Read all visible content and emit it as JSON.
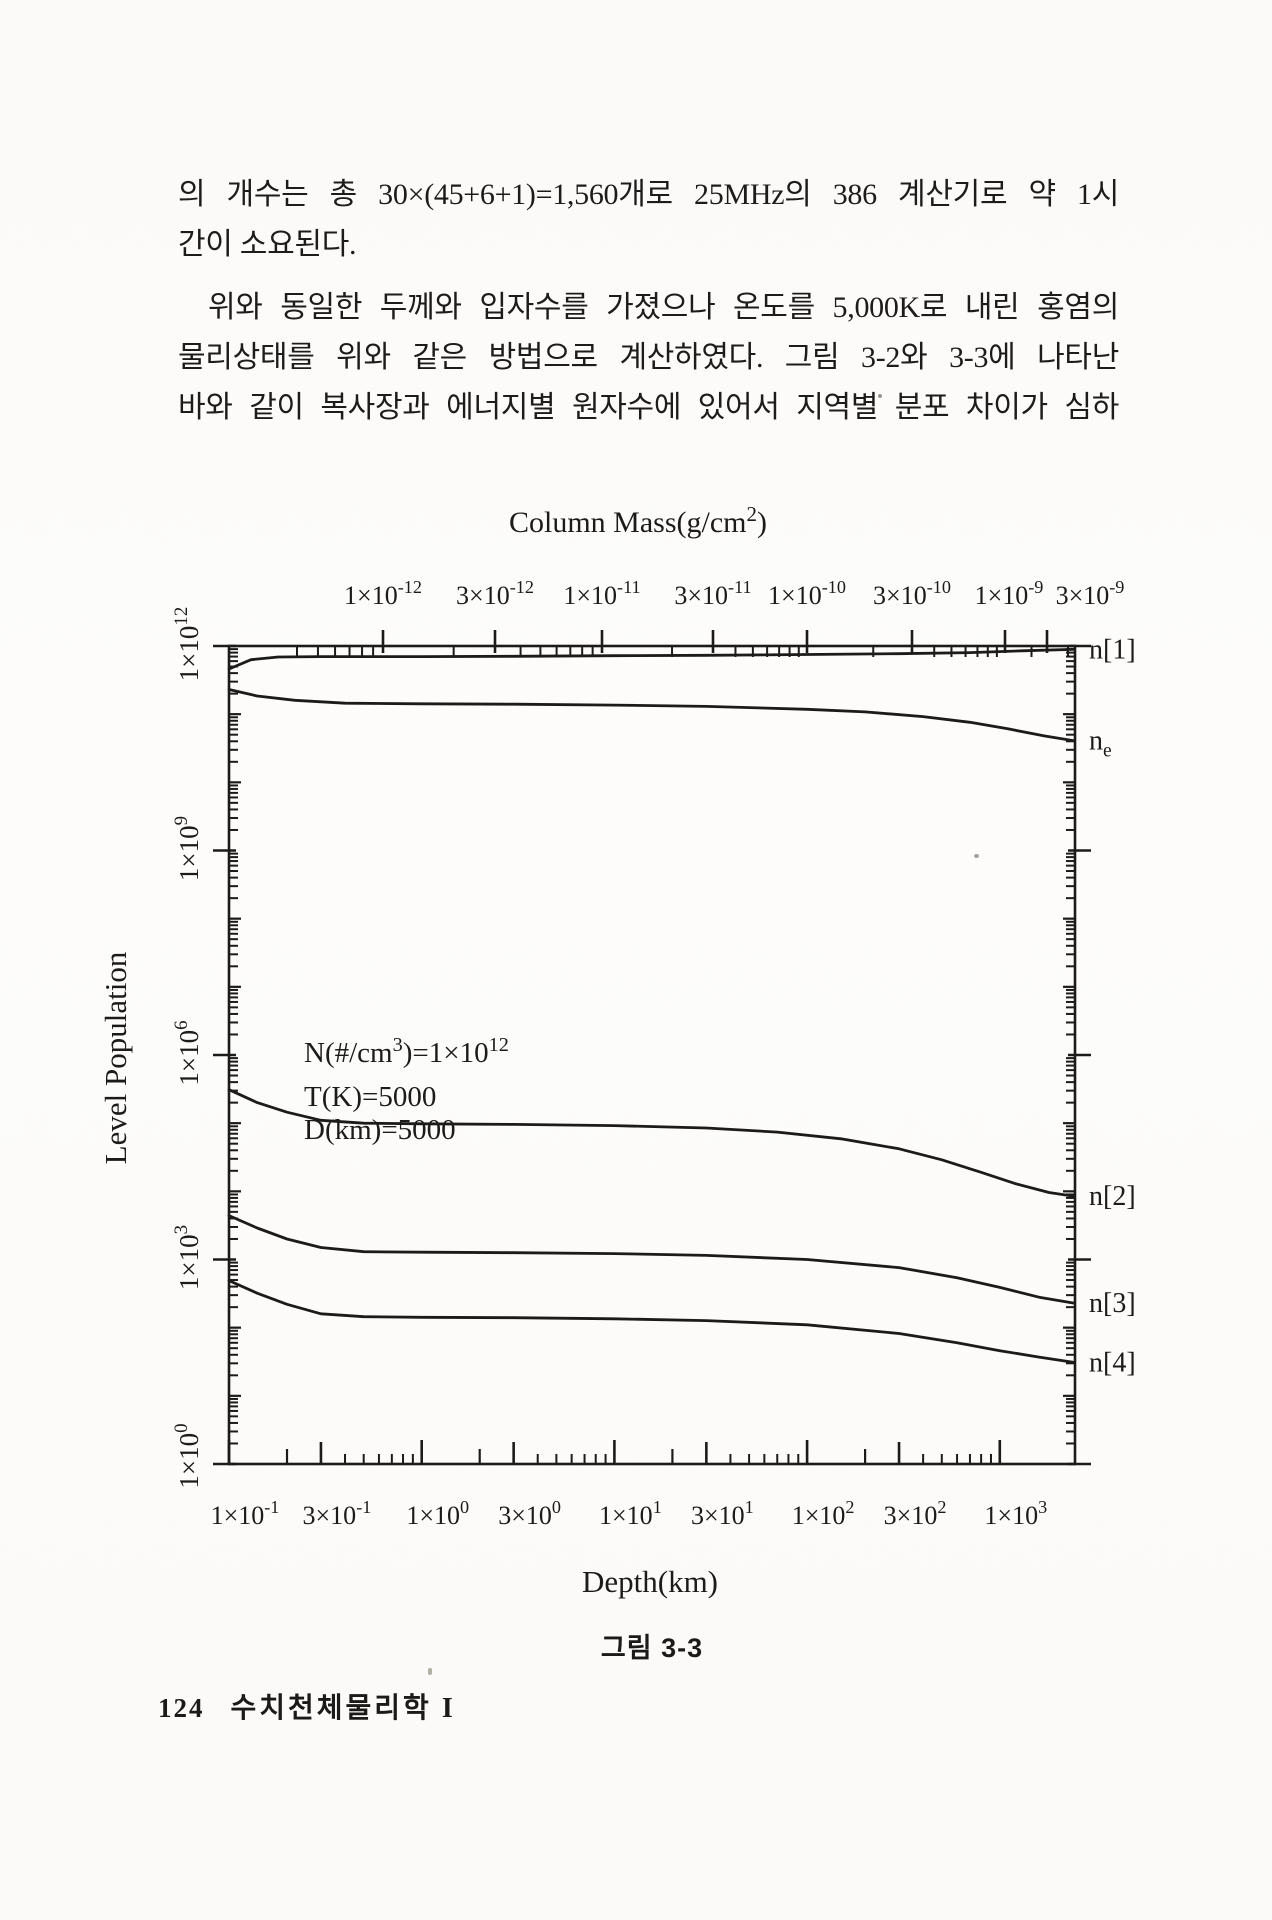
{
  "document": {
    "paragraph_lines": [
      "의 개수는 총 30×(45+6+1)=1,560개로 25MHz의 386 계산기로 약 1시",
      "간이 소요된다.",
      "위와 동일한 두께와 입자수를 가졌으나 온도를 5,000K로 내린 홍염의",
      "물리상태를 위와 같은 방법으로 계산하였다. 그림 3-2와 3-3에 나타난",
      "바와 같이 복사장과 에너지별 원자수에 있어서 지역별 분포 차이가 심하"
    ],
    "caption": "그림 3-3",
    "footer": {
      "page_number": "124",
      "book_title": "수치천체물리학 I"
    }
  },
  "chart_data": {
    "type": "line",
    "title": "Column Mass(g/cm²)",
    "xlabel": "Depth(km)",
    "ylabel": "Level Population",
    "grid": false,
    "x_axis": {
      "scale": "log",
      "unit": "km",
      "min": 0.1,
      "max": 2400,
      "tick_values": [
        0.1,
        0.3,
        1,
        3,
        10,
        30,
        100,
        300,
        1000
      ],
      "tick_labels": [
        "1×10⁻¹",
        "3×10⁻¹",
        "1×10⁰",
        "3×10⁰",
        "1×10¹",
        "3×10¹",
        "1×10²",
        "3×10²",
        "1×10³"
      ]
    },
    "y_axis": {
      "scale": "log",
      "unit": "cm⁻³",
      "min": 1,
      "max": 1000000000000.0,
      "tick_values": [
        1000000000000.0,
        1000000000.0,
        1000000.0,
        1000.0,
        1
      ],
      "tick_labels": [
        "1×10¹²",
        "1×10⁹",
        "1×10⁶",
        "1×10³",
        "1×10⁰"
      ]
    },
    "top_axis": {
      "title": "Column Mass(g/cm²)",
      "unit": "g/cm²",
      "tick_values": [
        1e-12,
        3e-12,
        1e-11,
        3e-11,
        1e-10,
        3e-10,
        1e-09,
        3e-09
      ],
      "tick_labels": [
        "1×10⁻¹²",
        "3×10⁻¹²",
        "1×10⁻¹¹",
        "3×10⁻¹¹",
        "1×10⁻¹⁰",
        "3×10⁻¹⁰",
        "1×10⁻⁹",
        "3×10⁻⁹"
      ]
    },
    "annotations": [
      "N(#/cm³)=1×10¹²",
      "T(K)=5000",
      "D(km)=5000"
    ],
    "series": [
      {
        "name": "n[1]",
        "points": [
          [
            0.1,
            460000000000.0
          ],
          [
            0.13,
            630000000000.0
          ],
          [
            0.18,
            690000000000.0
          ],
          [
            0.3,
            700000000000.0
          ],
          [
            1,
            700000000000.0
          ],
          [
            3,
            705000000000.0
          ],
          [
            10,
            720000000000.0
          ],
          [
            30,
            730000000000.0
          ],
          [
            100,
            750000000000.0
          ],
          [
            300,
            770000000000.0
          ],
          [
            700,
            800000000000.0
          ],
          [
            1300,
            850000000000.0
          ],
          [
            2400,
            890000000000.0
          ]
        ]
      },
      {
        "name": "nₑ",
        "points": [
          [
            0.1,
            230000000000.0
          ],
          [
            0.14,
            185000000000.0
          ],
          [
            0.22,
            160000000000.0
          ],
          [
            0.4,
            145000000000.0
          ],
          [
            1,
            142000000000.0
          ],
          [
            3,
            140000000000.0
          ],
          [
            10,
            136000000000.0
          ],
          [
            30,
            130000000000.0
          ],
          [
            100,
            118000000000.0
          ],
          [
            200,
            108000000000.0
          ],
          [
            400,
            92000000000.0
          ],
          [
            700,
            76000000000.0
          ],
          [
            1100,
            61000000000.0
          ],
          [
            1700,
            48000000000.0
          ],
          [
            2400,
            41000000000.0
          ]
        ]
      },
      {
        "name": "n[2]",
        "points": [
          [
            0.1,
            310000.0
          ],
          [
            0.14,
            200000.0
          ],
          [
            0.2,
            145000.0
          ],
          [
            0.3,
            110000.0
          ],
          [
            0.5,
            100000.0
          ],
          [
            1,
            98000.0
          ],
          [
            3,
            96000.0
          ],
          [
            10,
            92000.0
          ],
          [
            30,
            85000.0
          ],
          [
            70,
            74000.0
          ],
          [
            150,
            59000.0
          ],
          [
            300,
            42000.0
          ],
          [
            500,
            29000.0
          ],
          [
            800,
            19000.0
          ],
          [
            1200,
            13000.0
          ],
          [
            1800,
            9600.0
          ],
          [
            2400,
            8500.0
          ]
        ]
      },
      {
        "name": "n[3]",
        "points": [
          [
            0.1,
            4400.0
          ],
          [
            0.14,
            2900.0
          ],
          [
            0.2,
            2000.0
          ],
          [
            0.3,
            1500.0
          ],
          [
            0.5,
            1300.0
          ],
          [
            1,
            1280.0
          ],
          [
            3,
            1260.0
          ],
          [
            10,
            1220.0
          ],
          [
            30,
            1150.0
          ],
          [
            100,
            1000.0
          ],
          [
            300,
            760.0
          ],
          [
            600,
            540.0
          ],
          [
            1000,
            390.0
          ],
          [
            1600,
            280.0
          ],
          [
            2400,
            230.0
          ]
        ]
      },
      {
        "name": "n[4]",
        "points": [
          [
            0.1,
            490.0
          ],
          [
            0.14,
            320.0
          ],
          [
            0.2,
            220.0
          ],
          [
            0.3,
            160.0
          ],
          [
            0.5,
            145.0
          ],
          [
            1,
            142.0
          ],
          [
            3,
            140.0
          ],
          [
            10,
            135.0
          ],
          [
            30,
            127.0
          ],
          [
            100,
            110.0
          ],
          [
            300,
            82.0
          ],
          [
            600,
            60.0
          ],
          [
            1000,
            46.0
          ],
          [
            1600,
            37.0
          ],
          [
            2400,
            31.0
          ]
        ]
      }
    ]
  }
}
